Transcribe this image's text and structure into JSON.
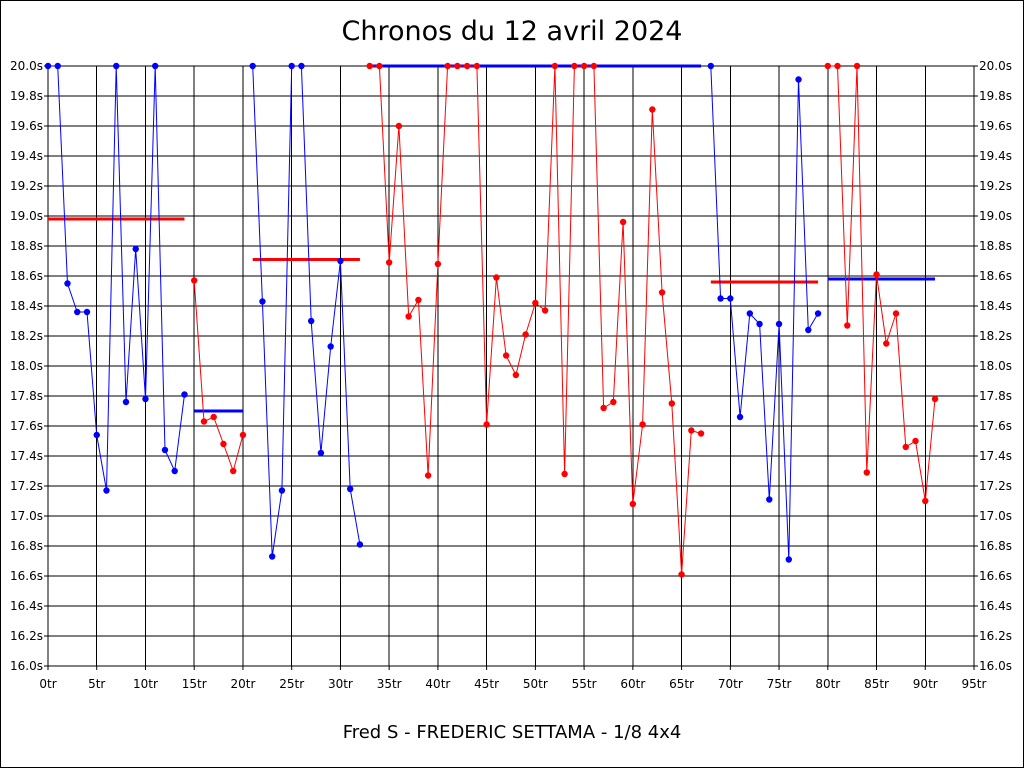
{
  "chart_data": {
    "type": "line",
    "title": "Chronos du 12 avril 2024",
    "subtitle": "Fred S - FREDERIC SETTAMA - 1/8 4x4",
    "x_ticks": [
      "0tr",
      "5tr",
      "10tr",
      "15tr",
      "20tr",
      "25tr",
      "30tr",
      "35tr",
      "40tr",
      "45tr",
      "50tr",
      "55tr",
      "60tr",
      "65tr",
      "70tr",
      "75tr",
      "80tr",
      "85tr",
      "90tr",
      "95tr"
    ],
    "y_ticks": [
      "16.0s",
      "16.2s",
      "16.4s",
      "16.6s",
      "16.8s",
      "17.0s",
      "17.2s",
      "17.4s",
      "17.6s",
      "17.8s",
      "18.0s",
      "18.2s",
      "18.4s",
      "18.6s",
      "18.8s",
      "19.0s",
      "19.2s",
      "19.4s",
      "19.6s",
      "19.8s",
      "20.0s"
    ],
    "xlim": [
      0,
      95
    ],
    "ylim": [
      16.0,
      20.0
    ],
    "grid": true,
    "colors": {
      "blue": "#0000ff",
      "red": "#ff0000"
    },
    "series": [
      {
        "color": "#0000ff",
        "x": [
          0,
          1,
          2,
          3,
          4,
          5,
          6,
          7,
          8,
          9,
          10,
          11,
          12,
          13,
          14
        ],
        "y": [
          20.0,
          20.0,
          18.55,
          18.36,
          18.36,
          17.54,
          17.17,
          20.0,
          17.76,
          18.78,
          17.78,
          20.0,
          17.44,
          17.3,
          17.81
        ]
      },
      {
        "color": "#ff0000",
        "x": [
          15,
          16,
          17,
          18,
          19,
          20
        ],
        "y": [
          18.57,
          17.63,
          17.66,
          17.48,
          17.3,
          17.54
        ]
      },
      {
        "color": "#0000ff",
        "x": [
          21,
          22,
          23,
          24,
          25,
          26,
          27,
          28,
          29,
          30,
          31,
          32
        ],
        "y": [
          20.0,
          18.43,
          16.73,
          17.17,
          20.0,
          20.0,
          18.3,
          17.42,
          18.13,
          18.7,
          17.18,
          16.81
        ]
      },
      {
        "color": "#ff0000",
        "x": [
          33,
          34,
          35,
          36,
          37,
          38,
          39,
          40,
          41,
          42,
          43,
          44,
          45,
          46,
          47,
          48,
          49,
          50,
          51,
          52,
          53,
          54,
          55,
          56,
          57,
          58,
          59,
          60,
          61,
          62,
          63,
          64,
          65,
          66,
          67
        ],
        "y": [
          20.0,
          20.0,
          18.69,
          19.6,
          18.33,
          18.44,
          17.27,
          18.68,
          20.0,
          20.0,
          20.0,
          20.0,
          17.61,
          18.59,
          18.07,
          17.94,
          18.21,
          18.42,
          18.37,
          20.0,
          17.28,
          20.0,
          20.0,
          20.0,
          17.72,
          17.76,
          18.96,
          17.08,
          17.61,
          19.71,
          18.49,
          17.75,
          16.61,
          17.57,
          17.55
        ]
      },
      {
        "color": "#0000ff",
        "x": [
          68,
          69,
          70,
          71,
          72,
          73,
          74,
          75,
          76,
          77,
          78,
          79
        ],
        "y": [
          20.0,
          18.45,
          18.45,
          17.66,
          18.35,
          18.28,
          17.11,
          18.28,
          16.71,
          19.91,
          18.24,
          18.35
        ]
      },
      {
        "color": "#ff0000",
        "x": [
          80,
          81,
          82,
          83,
          84,
          85,
          86,
          87,
          88,
          89,
          90,
          91
        ],
        "y": [
          20.0,
          20.0,
          18.27,
          20.0,
          17.29,
          18.61,
          18.15,
          18.35,
          17.46,
          17.5,
          17.1,
          17.78
        ]
      }
    ],
    "average_lines": [
      {
        "color": "#ff0000",
        "x": [
          0,
          14
        ],
        "y": 18.98
      },
      {
        "color": "#0000ff",
        "x": [
          15,
          20
        ],
        "y": 17.7
      },
      {
        "color": "#ff0000",
        "x": [
          21,
          32
        ],
        "y": 18.71
      },
      {
        "color": "#0000ff",
        "x": [
          33,
          67
        ],
        "y": 20.0
      },
      {
        "color": "#ff0000",
        "x": [
          68,
          79
        ],
        "y": 18.56
      },
      {
        "color": "#0000ff",
        "x": [
          80,
          91
        ],
        "y": 18.58
      }
    ]
  }
}
